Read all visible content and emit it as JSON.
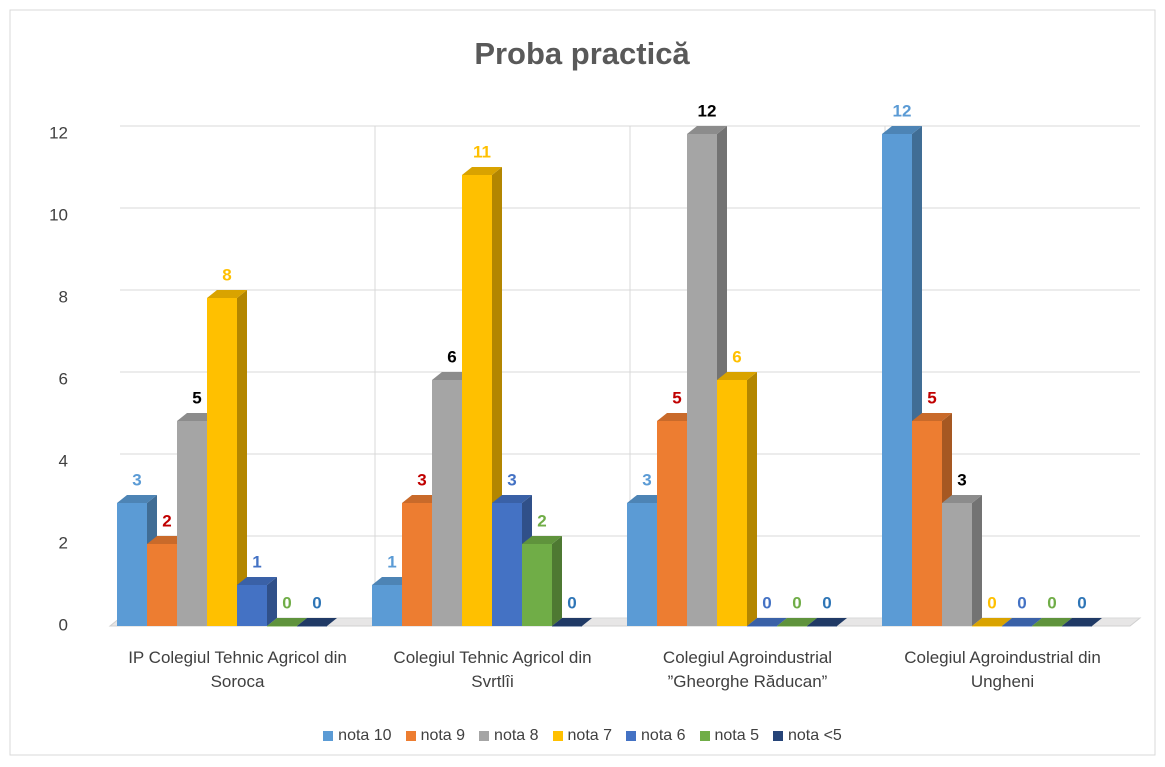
{
  "chart_data": {
    "type": "bar3d",
    "title": "Proba practică",
    "categories": [
      "IP Colegiul Tehnic Agricol din Soroca",
      "Colegiul Tehnic Agricol din Svrtlîi",
      "Colegiul Agroindustrial ”Gheorghe Răducan”",
      "Colegiul Agroindustrial din Ungheni"
    ],
    "series": [
      {
        "name": "nota 10",
        "color": "#5b9bd5",
        "label_color": "#5b9bd5",
        "values": [
          3,
          1,
          3,
          12
        ]
      },
      {
        "name": "nota 9",
        "color": "#ed7d31",
        "label_color": "#c00000",
        "values": [
          2,
          3,
          5,
          5
        ]
      },
      {
        "name": "nota 8",
        "color": "#a5a5a5",
        "label_color": "#000000",
        "values": [
          5,
          6,
          12,
          3
        ]
      },
      {
        "name": "nota 7",
        "color": "#ffc000",
        "label_color": "#ffc000",
        "values": [
          8,
          11,
          6,
          0
        ]
      },
      {
        "name": "nota 6",
        "color": "#4472c4",
        "label_color": "#4472c4",
        "values": [
          1,
          3,
          0,
          0
        ]
      },
      {
        "name": "nota 5",
        "color": "#70ad47",
        "label_color": "#70ad47",
        "values": [
          0,
          2,
          0,
          0
        ]
      },
      {
        "name": "nota <5",
        "color": "#264478",
        "label_color": "#2e75b6",
        "values": [
          0,
          0,
          0,
          0
        ]
      }
    ],
    "ylim": [
      0,
      12
    ],
    "yticks": [
      0,
      2,
      4,
      6,
      8,
      10,
      12
    ],
    "grid": true,
    "legend": "bottom"
  }
}
